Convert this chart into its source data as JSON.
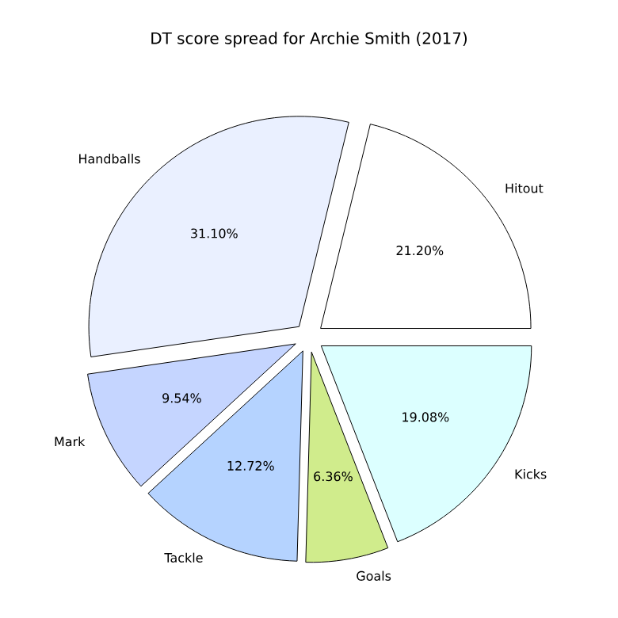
{
  "chart_data": {
    "type": "pie",
    "title": "DT score spread for Archie Smith (2017)",
    "categories": [
      "Hitout",
      "Handballs",
      "Mark",
      "Tackle",
      "Goals",
      "Kicks"
    ],
    "values": [
      21.2,
      31.1,
      9.54,
      12.72,
      6.36,
      19.08
    ],
    "value_labels": [
      "21.20%",
      "31.10%",
      "9.54%",
      "12.72%",
      "6.36%",
      "19.08%"
    ],
    "colors": [
      "#ffffff",
      "#eaf0ff",
      "#c5d5ff",
      "#b5d3ff",
      "#d0ec8c",
      "#dcffff"
    ]
  }
}
